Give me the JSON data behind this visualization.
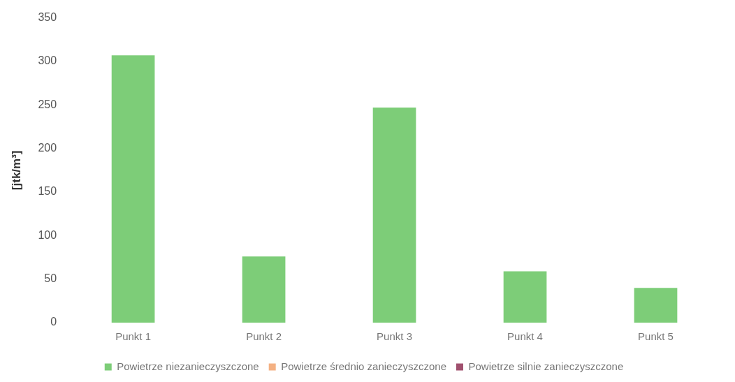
{
  "chart_data": {
    "type": "bar",
    "ylabel": "[jtk/m³]",
    "categories": [
      "Punkt 1",
      "Punkt 2",
      "Punkt 3",
      "Punkt 4",
      "Punkt 5"
    ],
    "series": [
      {
        "name": "Powietrze niezanieczyszczone",
        "color": "#7dcd78",
        "values": [
          307,
          76,
          247,
          59,
          40
        ]
      },
      {
        "name": "Powietrze średnio zanieczyszczone",
        "color": "#f4b183",
        "values": [
          null,
          null,
          null,
          null,
          null
        ]
      },
      {
        "name": "Powietrze silnie zanieczyszczone",
        "color": "#a0506e",
        "values": [
          null,
          null,
          null,
          null,
          null
        ]
      }
    ],
    "ylim": [
      0,
      350
    ],
    "yticks": [
      0,
      50,
      100,
      150,
      200,
      250,
      300,
      350
    ],
    "grid": false,
    "legend": "bottom"
  }
}
